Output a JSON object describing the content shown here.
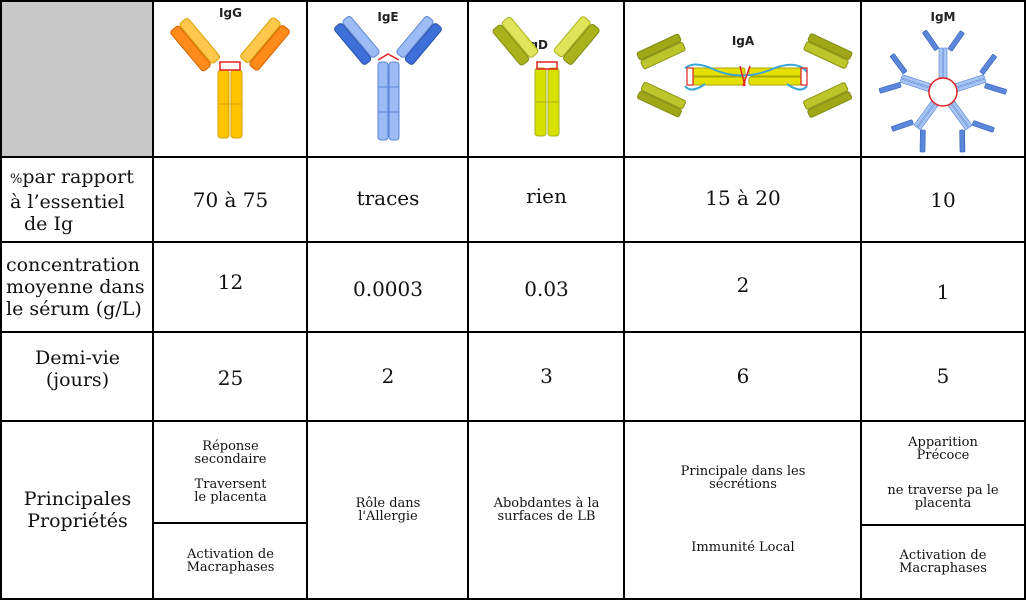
{
  "header": {
    "igg": "IgG",
    "ige": "IgE",
    "igd": "IgD",
    "iga": "IgA",
    "igm": "IgM"
  },
  "icons": {
    "igg": "igg-antibody-icon",
    "ige": "ige-antibody-icon",
    "igd": "igd-antibody-icon",
    "iga": "iga-dimer-icon",
    "igm": "igm-pentamer-icon"
  },
  "colors": {
    "igg_light": "#ff7a00",
    "igg_heavy": "#ffc400",
    "ige": "#6f9cf0",
    "igd": "#c8d400",
    "iga": "#d9d600",
    "igm": "#4f7fd6",
    "bond": "#e02020",
    "corner": "#c8c8c8"
  },
  "rows": {
    "percent": {
      "label_prefix": "%",
      "label_line1": "par rapport",
      "label_line2": "à l’essentiel",
      "label_line3": "de Ig",
      "values": [
        "70 à 75",
        "traces",
        "rien",
        "15 à 20",
        "10"
      ]
    },
    "concentration": {
      "label_line1": "concentration",
      "label_line2": "moyenne dans",
      "label_line3": "le sérum (g/L)",
      "values": [
        "12",
        "0.0003",
        "0.03",
        "2",
        "1"
      ]
    },
    "halflife": {
      "label_line1": "Demi-vie",
      "label_line2": "(jours)",
      "values": [
        "25",
        "2",
        "3",
        "6",
        "5"
      ]
    },
    "properties": {
      "label_line1": "Principales",
      "label_line2": "Propriétés",
      "igg_top_1a": "Réponse",
      "igg_top_1b": "secondaire",
      "igg_top_2a": "Traversent",
      "igg_top_2b": "le placenta",
      "igg_bottom_a": "Activation de",
      "igg_bottom_b": "Macraphases",
      "ige_a": "Rôle dans",
      "ige_b": "l'Allergie",
      "igd_a": "Abobdantes à la",
      "igd_b": "surfaces de LB",
      "iga_1a": "Principale dans les",
      "iga_1b": "sécrétions",
      "iga_2": "Immunité Local",
      "igm_top_1a": "Apparition",
      "igm_top_1b": "Précoce",
      "igm_top_2a": "ne traverse pa le",
      "igm_top_2b": "placenta",
      "igm_bottom_a": "Activation de",
      "igm_bottom_b": "Macraphases"
    }
  }
}
